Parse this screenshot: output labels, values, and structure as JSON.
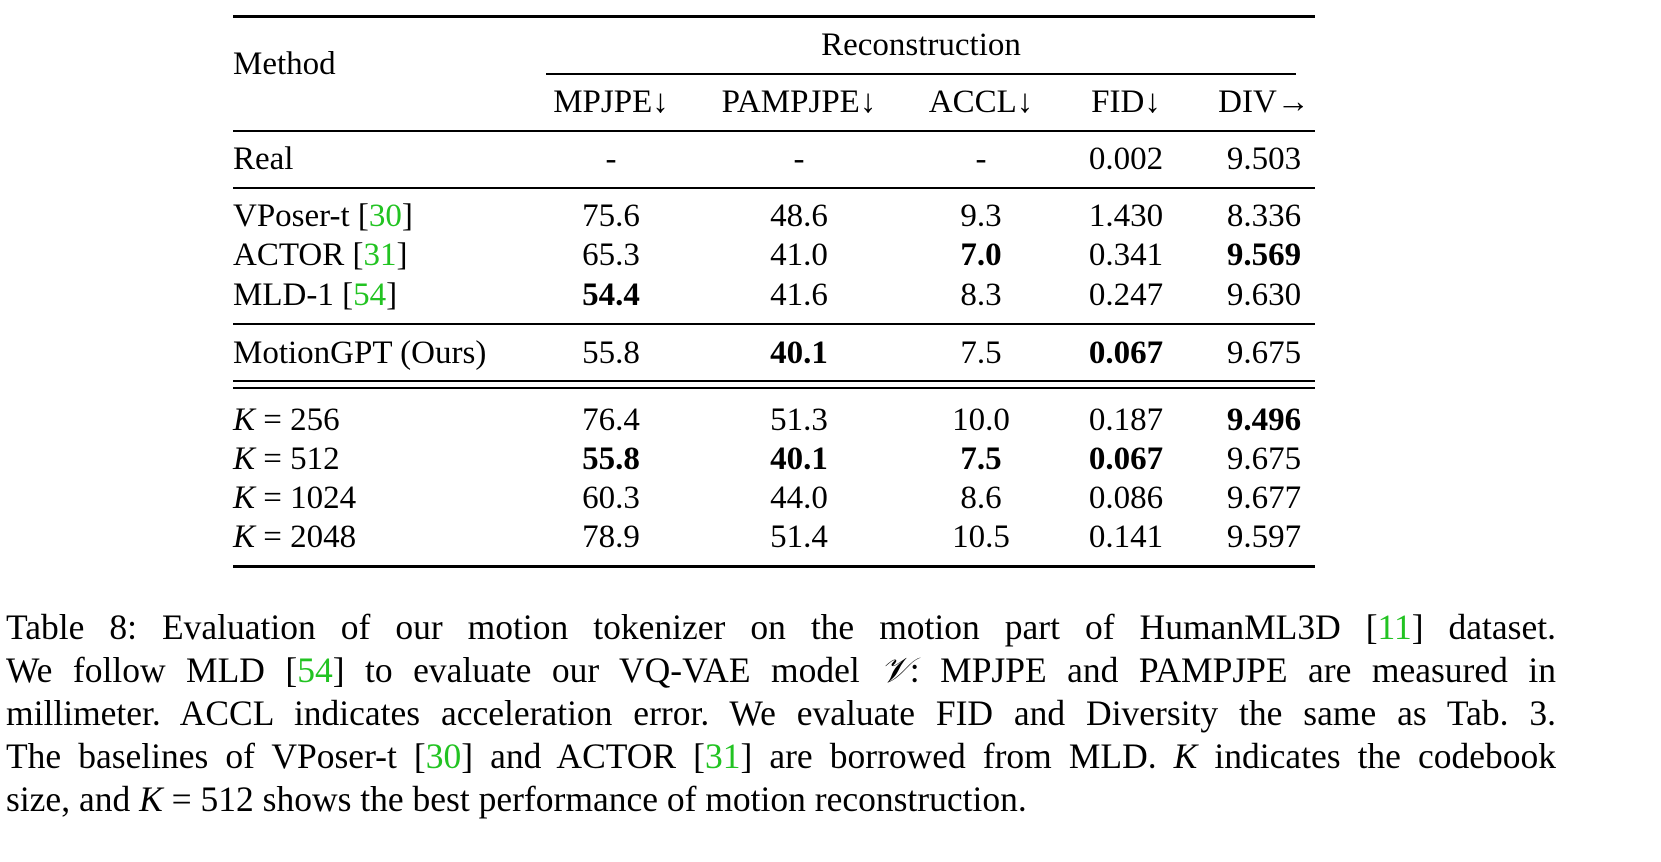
{
  "table": {
    "header": {
      "method": "Method",
      "group": "Reconstruction",
      "columns": [
        "MPJPE↓",
        "PAMPJPE↓",
        "ACCL↓",
        "FID↓",
        "DIV→"
      ]
    },
    "rows": [
      {
        "label": "Real",
        "cite": "",
        "values": [
          "-",
          "-",
          "-",
          "0.002",
          "9.503"
        ],
        "bold": [
          false,
          false,
          false,
          false,
          false
        ]
      },
      {
        "label": "VPoser-t ",
        "cite": "30",
        "values": [
          "75.6",
          "48.6",
          "9.3",
          "1.430",
          "8.336"
        ],
        "bold": [
          false,
          false,
          false,
          false,
          false
        ]
      },
      {
        "label": "ACTOR ",
        "cite": "31",
        "values": [
          "65.3",
          "41.0",
          "7.0",
          "0.341",
          "9.569"
        ],
        "bold": [
          false,
          false,
          true,
          false,
          true
        ]
      },
      {
        "label": "MLD-1 ",
        "cite": "54",
        "values": [
          "54.4",
          "41.6",
          "8.3",
          "0.247",
          "9.630"
        ],
        "bold": [
          true,
          false,
          false,
          false,
          false
        ]
      },
      {
        "label": "MotionGPT (Ours)",
        "cite": "",
        "values": [
          "55.8",
          "40.1",
          "7.5",
          "0.067",
          "9.675"
        ],
        "bold": [
          false,
          true,
          false,
          true,
          false
        ]
      },
      {
        "label_var": "K",
        "label_rest": " = 256",
        "values": [
          "76.4",
          "51.3",
          "10.0",
          "0.187",
          "9.496"
        ],
        "bold": [
          false,
          false,
          false,
          false,
          true
        ]
      },
      {
        "label_var": "K",
        "label_rest": " = 512",
        "values": [
          "55.8",
          "40.1",
          "7.5",
          "0.067",
          "9.675"
        ],
        "bold": [
          true,
          true,
          true,
          true,
          false
        ]
      },
      {
        "label_var": "K",
        "label_rest": " = 1024",
        "values": [
          "60.3",
          "44.0",
          "8.6",
          "0.086",
          "9.677"
        ],
        "bold": [
          false,
          false,
          false,
          false,
          false
        ]
      },
      {
        "label_var": "K",
        "label_rest": " = 2048",
        "values": [
          "78.9",
          "51.4",
          "10.5",
          "0.141",
          "9.597"
        ],
        "bold": [
          false,
          false,
          false,
          false,
          false
        ]
      }
    ]
  },
  "caption": {
    "l1a": "Table 8: Evaluation of our motion tokenizer on the motion part of HumanML3D [",
    "l1cite": "11",
    "l1b": "] dataset.",
    "l2a": "We follow MLD [",
    "l2cite": "54",
    "l2b": "] to evaluate our VQ-VAE model ",
    "l2var": "𝒱",
    "l2c": ": MPJPE and PAMPJPE are measured in",
    "l3": "millimeter. ACCL indicates acceleration error. We evaluate FID and Diversity the same as Tab. 3.",
    "l4a": "The baselines of VPoser-t [",
    "l4cite1": "30",
    "l4b": "] and ACTOR [",
    "l4cite2": "31",
    "l4c": "] are borrowed from MLD. ",
    "l4var": "K",
    "l4d": " indicates the codebook",
    "l5a": "size, and ",
    "l5var": "K",
    "l5b": " = 512 shows the best performance of motion reconstruction."
  }
}
